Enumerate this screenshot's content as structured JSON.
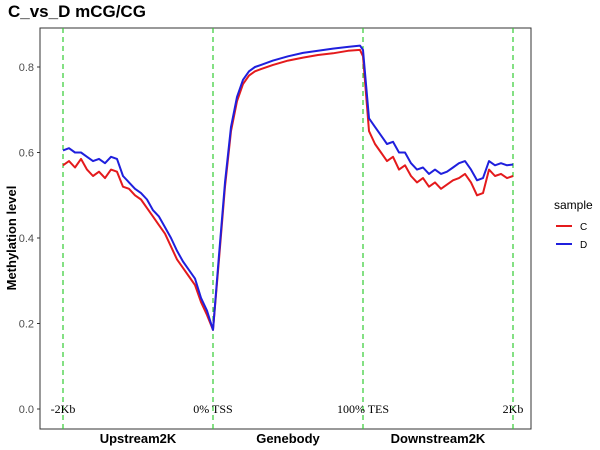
{
  "chart_data": {
    "type": "line",
    "title": "C_vs_D  mCG/CG",
    "ylabel": "Methylation level",
    "xlabel": "",
    "ylim": [
      0.0,
      0.85
    ],
    "yticks": [
      "0.0",
      "0.2",
      "0.4",
      "0.6",
      "0.8"
    ],
    "ytick_values": [
      0.0,
      0.2,
      0.4,
      0.6,
      0.8
    ],
    "xlim": [
      0,
      150
    ],
    "region_labels": [
      {
        "label": "Upstream2K",
        "x": 25
      },
      {
        "label": "Genebody",
        "x": 75
      },
      {
        "label": "Downstream2K",
        "x": 125
      }
    ],
    "annotations": [
      {
        "label": "-2Kb",
        "x": 0
      },
      {
        "label": "0% TSS",
        "x": 50
      },
      {
        "label": "100% TES",
        "x": 100
      },
      {
        "label": "2Kb",
        "x": 150
      }
    ],
    "vlines": [
      0,
      50,
      100,
      150
    ],
    "vline_color": "#33cc33",
    "legend_title": "sample",
    "legend_position": "right",
    "series": [
      {
        "name": "C",
        "color": "#e41a1c",
        "x": [
          0,
          2,
          4,
          6,
          8,
          10,
          12,
          14,
          16,
          18,
          20,
          22,
          24,
          26,
          28,
          30,
          32,
          34,
          36,
          38,
          40,
          42,
          44,
          46,
          48,
          50,
          52,
          54,
          56,
          58,
          60,
          62,
          64,
          66,
          70,
          75,
          80,
          85,
          90,
          95,
          99,
          100,
          102,
          104,
          106,
          108,
          110,
          112,
          114,
          116,
          118,
          120,
          122,
          124,
          126,
          128,
          130,
          132,
          134,
          136,
          138,
          140,
          142,
          144,
          146,
          148,
          150
        ],
        "y": [
          0.57,
          0.58,
          0.565,
          0.585,
          0.56,
          0.545,
          0.555,
          0.54,
          0.56,
          0.555,
          0.52,
          0.515,
          0.5,
          0.49,
          0.47,
          0.45,
          0.43,
          0.41,
          0.38,
          0.35,
          0.33,
          0.31,
          0.29,
          0.25,
          0.22,
          0.185,
          0.35,
          0.52,
          0.65,
          0.72,
          0.76,
          0.78,
          0.79,
          0.795,
          0.805,
          0.815,
          0.822,
          0.828,
          0.832,
          0.838,
          0.84,
          0.825,
          0.65,
          0.62,
          0.6,
          0.58,
          0.59,
          0.56,
          0.57,
          0.545,
          0.53,
          0.54,
          0.52,
          0.53,
          0.515,
          0.525,
          0.535,
          0.54,
          0.55,
          0.53,
          0.5,
          0.505,
          0.56,
          0.545,
          0.55,
          0.54,
          0.545
        ]
      },
      {
        "name": "D",
        "color": "#1f1fdd",
        "x": [
          0,
          2,
          4,
          6,
          8,
          10,
          12,
          14,
          16,
          18,
          20,
          22,
          24,
          26,
          28,
          30,
          32,
          34,
          36,
          38,
          40,
          42,
          44,
          46,
          48,
          50,
          52,
          54,
          56,
          58,
          60,
          62,
          64,
          66,
          70,
          75,
          80,
          85,
          90,
          95,
          99,
          100,
          102,
          104,
          106,
          108,
          110,
          112,
          114,
          116,
          118,
          120,
          122,
          124,
          126,
          128,
          130,
          132,
          134,
          136,
          138,
          140,
          142,
          144,
          146,
          148,
          150
        ],
        "y": [
          0.605,
          0.61,
          0.6,
          0.6,
          0.59,
          0.58,
          0.585,
          0.575,
          0.59,
          0.585,
          0.545,
          0.53,
          0.515,
          0.505,
          0.49,
          0.465,
          0.45,
          0.425,
          0.4,
          0.37,
          0.345,
          0.325,
          0.305,
          0.26,
          0.23,
          0.185,
          0.36,
          0.53,
          0.66,
          0.73,
          0.77,
          0.79,
          0.8,
          0.805,
          0.815,
          0.825,
          0.833,
          0.838,
          0.843,
          0.847,
          0.85,
          0.84,
          0.68,
          0.66,
          0.64,
          0.62,
          0.625,
          0.6,
          0.6,
          0.575,
          0.56,
          0.565,
          0.55,
          0.56,
          0.55,
          0.555,
          0.565,
          0.575,
          0.58,
          0.56,
          0.535,
          0.54,
          0.58,
          0.57,
          0.575,
          0.57,
          0.572
        ]
      }
    ]
  }
}
